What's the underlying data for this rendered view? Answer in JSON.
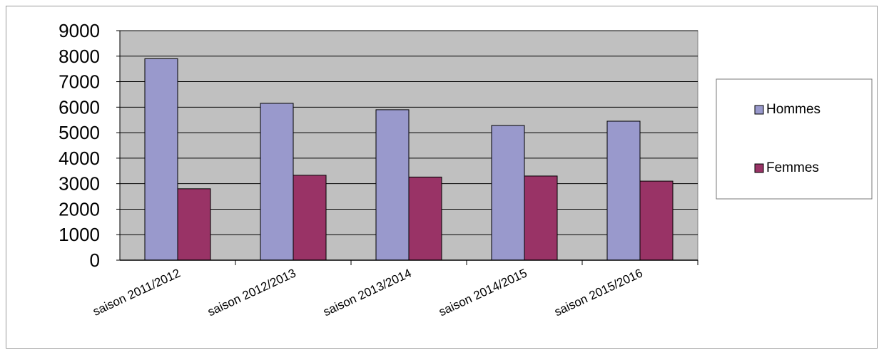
{
  "chart_data": {
    "type": "bar",
    "title": "",
    "xlabel": "",
    "ylabel": "",
    "categories": [
      "saison 2011/2012",
      "saison 2012/2013",
      "saison 2013/2014",
      "saison 2014/2015",
      "saison 2015/2016"
    ],
    "series": [
      {
        "name": "Hommes",
        "values": [
          7900,
          6150,
          5900,
          5280,
          5450
        ],
        "color": "#9999cc"
      },
      {
        "name": "Femmes",
        "values": [
          2800,
          3330,
          3260,
          3300,
          3100
        ],
        "color": "#993366"
      }
    ],
    "ylim": [
      0,
      9000
    ],
    "yticks": [
      "0",
      "1000",
      "2000",
      "3000",
      "4000",
      "5000",
      "6000",
      "7000",
      "8000",
      "9000"
    ],
    "grid": true,
    "legend_position": "right",
    "plot_background": "#c0c0c0"
  }
}
